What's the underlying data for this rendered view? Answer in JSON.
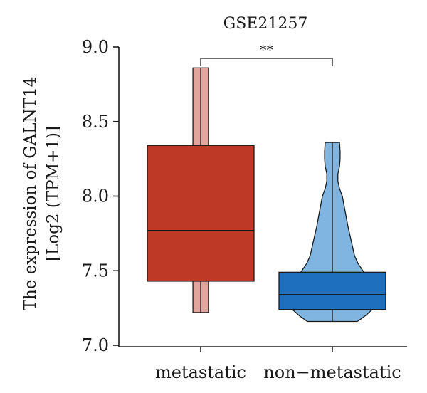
{
  "chart_data": {
    "type": "violin-box",
    "title": "GSE21257",
    "ylabel_line1": "The expression of GALNT14",
    "ylabel_line2": "[Log2 (TPM+1)]",
    "categories": [
      "metastatic",
      "non−metastatic"
    ],
    "ylim": [
      7.0,
      9.0
    ],
    "yticks": [
      7.0,
      7.5,
      8.0,
      8.5,
      9.0
    ],
    "ytick_labels": [
      "7.0",
      "7.5",
      "8.0",
      "8.5",
      "9.0"
    ],
    "significance": "**",
    "groups": [
      {
        "name": "metastatic",
        "box": {
          "q1": 7.43,
          "median": 7.77,
          "q3": 8.34
        },
        "range": [
          7.22,
          8.86
        ],
        "violin_color": "#e0a59c",
        "box_color": "#bf3a26",
        "violin_profile": [
          [
            7.22,
            0.14
          ],
          [
            7.3,
            0.14
          ],
          [
            8.84,
            0.14
          ],
          [
            8.86,
            0.14
          ]
        ]
      },
      {
        "name": "non−metastatic",
        "box": {
          "q1": 7.24,
          "median": 7.34,
          "q3": 7.49
        },
        "range": [
          7.16,
          8.36
        ],
        "violin_color": "#7fb5e0",
        "box_color": "#1f6fbf",
        "violin_profile": [
          [
            7.16,
            0.45
          ],
          [
            7.2,
            0.6
          ],
          [
            7.25,
            0.75
          ],
          [
            7.3,
            0.8
          ],
          [
            7.35,
            0.78
          ],
          [
            7.4,
            0.72
          ],
          [
            7.45,
            0.65
          ],
          [
            7.5,
            0.55
          ],
          [
            7.55,
            0.46
          ],
          [
            7.6,
            0.4
          ],
          [
            7.7,
            0.34
          ],
          [
            7.8,
            0.28
          ],
          [
            7.9,
            0.23
          ],
          [
            8.0,
            0.18
          ],
          [
            8.05,
            0.13
          ],
          [
            8.1,
            0.1
          ],
          [
            8.15,
            0.1
          ],
          [
            8.2,
            0.13
          ],
          [
            8.25,
            0.14
          ],
          [
            8.3,
            0.14
          ],
          [
            8.36,
            0.13
          ]
        ]
      }
    ]
  }
}
